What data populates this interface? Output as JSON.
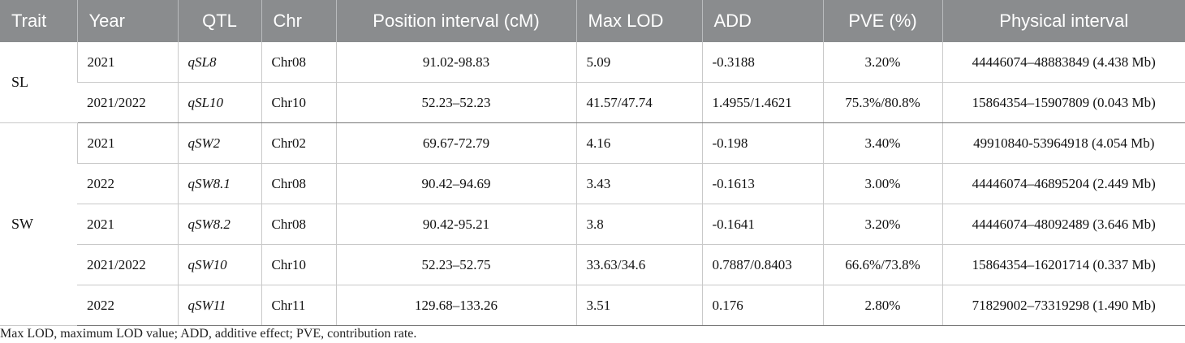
{
  "table": {
    "headers": [
      "Trait",
      "Year",
      "QTL",
      "Chr",
      "Position interval (cM)",
      "Max LOD",
      "ADD",
      "PVE (%)",
      "Physical interval"
    ],
    "groups": [
      {
        "trait": "SL",
        "rows": [
          {
            "year": "2021",
            "qtl": "qSL8",
            "chr": "Chr08",
            "position": "91.02-98.83",
            "lod": "5.09",
            "add": "-0.3188",
            "pve": "3.20%",
            "physical": "44446074–48883849 (4.438 Mb)"
          },
          {
            "year": "2021/2022",
            "qtl": "qSL10",
            "chr": "Chr10",
            "position": "52.23–52.23",
            "lod": "41.57/47.74",
            "add": "1.4955/1.4621",
            "pve": "75.3%/80.8%",
            "physical": "15864354–15907809 (0.043 Mb)"
          }
        ]
      },
      {
        "trait": "SW",
        "rows": [
          {
            "year": "2021",
            "qtl": "qSW2",
            "chr": "Chr02",
            "position": "69.67-72.79",
            "lod": "4.16",
            "add": "-0.198",
            "pve": "3.40%",
            "physical": "49910840-53964918 (4.054 Mb)"
          },
          {
            "year": "2022",
            "qtl": "qSW8.1",
            "chr": "Chr08",
            "position": "90.42–94.69",
            "lod": "3.43",
            "add": "-0.1613",
            "pve": "3.00%",
            "physical": "44446074–46895204 (2.449 Mb)"
          },
          {
            "year": "2021",
            "qtl": "qSW8.2",
            "chr": "Chr08",
            "position": "90.42-95.21",
            "lod": "3.8",
            "add": "-0.1641",
            "pve": "3.20%",
            "physical": "44446074–48092489 (3.646 Mb)"
          },
          {
            "year": "2021/2022",
            "qtl": "qSW10",
            "chr": "Chr10",
            "position": "52.23–52.75",
            "lod": "33.63/34.6",
            "add": "0.7887/0.8403",
            "pve": "66.6%/73.8%",
            "physical": "15864354–16201714 (0.337 Mb)"
          },
          {
            "year": "2022",
            "qtl": "qSW11",
            "chr": "Chr11",
            "position": "129.68–133.26",
            "lod": "3.51",
            "add": "0.176",
            "pve": "2.80%",
            "physical": "71829002–73319298 (1.490 Mb)"
          }
        ]
      }
    ]
  },
  "footnote": "Max LOD, maximum LOD value; ADD, additive effect; PVE, contribution rate."
}
